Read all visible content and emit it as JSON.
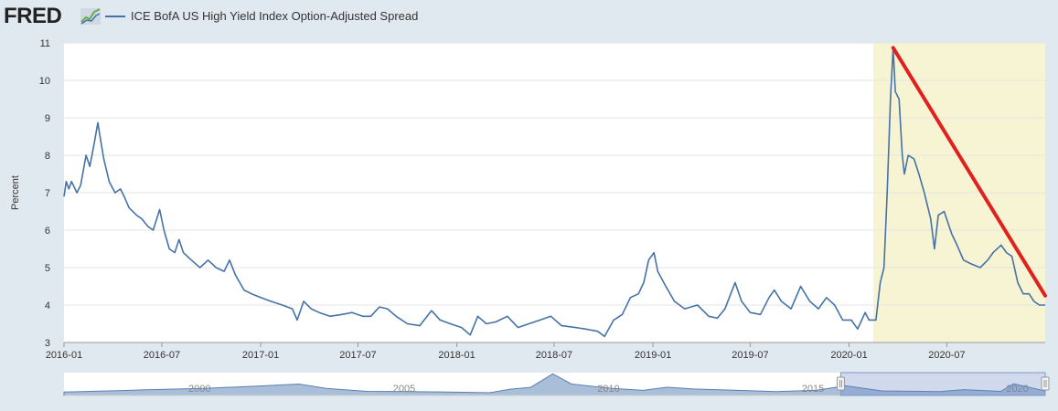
{
  "header": {
    "logo": "FRED",
    "legend_label": "ICE BofA US High Yield Index Option-Adjusted Spread"
  },
  "colors": {
    "series": "#4572a7",
    "recession_band": "#f7f4d3",
    "annotation": "#e0211d",
    "background": "#e1e9f0",
    "navigator_fill": "#a9bfd9"
  },
  "chart_data": {
    "type": "line",
    "title": "",
    "ylabel": "Percent",
    "xlabel": "",
    "ylim": [
      3,
      11
    ],
    "yticks": [
      "3",
      "4",
      "5",
      "6",
      "7",
      "8",
      "9",
      "10",
      "11"
    ],
    "xlim": [
      "2016-01-01",
      "2020-12-31"
    ],
    "xticks": [
      "2016-01",
      "2016-07",
      "2017-01",
      "2017-07",
      "2018-01",
      "2018-07",
      "2019-01",
      "2019-07",
      "2020-01",
      "2020-07"
    ],
    "grid": "horizontal",
    "shaded_region": {
      "start": "2020-02-15",
      "end": "2020-12-31"
    },
    "annotation_line": {
      "from": [
        "2020-03-23",
        10.87
      ],
      "to": [
        "2020-12-31",
        4.25
      ]
    },
    "series": [
      {
        "name": "ICE BofA US High Yield Index Option-Adjusted Spread",
        "points": [
          [
            "2016-01-01",
            6.9
          ],
          [
            "2016-01-05",
            7.3
          ],
          [
            "2016-01-10",
            7.1
          ],
          [
            "2016-01-15",
            7.3
          ],
          [
            "2016-01-25",
            7.0
          ],
          [
            "2016-02-01",
            7.2
          ],
          [
            "2016-02-11",
            8.0
          ],
          [
            "2016-02-18",
            7.7
          ],
          [
            "2016-02-26",
            8.3
          ],
          [
            "2016-03-04",
            8.87
          ],
          [
            "2016-03-08",
            8.5
          ],
          [
            "2016-03-15",
            7.9
          ],
          [
            "2016-03-25",
            7.3
          ],
          [
            "2016-04-05",
            7.0
          ],
          [
            "2016-04-15",
            7.1
          ],
          [
            "2016-04-22",
            6.9
          ],
          [
            "2016-05-01",
            6.6
          ],
          [
            "2016-05-15",
            6.4
          ],
          [
            "2016-05-25",
            6.3
          ],
          [
            "2016-06-05",
            6.1
          ],
          [
            "2016-06-15",
            6.0
          ],
          [
            "2016-06-27",
            6.55
          ],
          [
            "2016-07-05",
            6.0
          ],
          [
            "2016-07-15",
            5.5
          ],
          [
            "2016-07-25",
            5.4
          ],
          [
            "2016-08-02",
            5.75
          ],
          [
            "2016-08-10",
            5.4
          ],
          [
            "2016-08-25",
            5.2
          ],
          [
            "2016-09-10",
            5.0
          ],
          [
            "2016-09-25",
            5.2
          ],
          [
            "2016-10-10",
            5.0
          ],
          [
            "2016-10-25",
            4.9
          ],
          [
            "2016-11-04",
            5.2
          ],
          [
            "2016-11-15",
            4.8
          ],
          [
            "2016-12-01",
            4.4
          ],
          [
            "2016-12-15",
            4.3
          ],
          [
            "2017-01-01",
            4.2
          ],
          [
            "2017-01-20",
            4.1
          ],
          [
            "2017-02-10",
            4.0
          ],
          [
            "2017-03-01",
            3.9
          ],
          [
            "2017-03-10",
            3.6
          ],
          [
            "2017-03-22",
            4.1
          ],
          [
            "2017-04-05",
            3.9
          ],
          [
            "2017-04-20",
            3.8
          ],
          [
            "2017-05-10",
            3.7
          ],
          [
            "2017-06-01",
            3.75
          ],
          [
            "2017-06-20",
            3.8
          ],
          [
            "2017-07-10",
            3.7
          ],
          [
            "2017-07-25",
            3.7
          ],
          [
            "2017-08-10",
            3.95
          ],
          [
            "2017-08-25",
            3.9
          ],
          [
            "2017-09-10",
            3.7
          ],
          [
            "2017-10-01",
            3.5
          ],
          [
            "2017-10-24",
            3.45
          ],
          [
            "2017-11-15",
            3.85
          ],
          [
            "2017-12-01",
            3.6
          ],
          [
            "2017-12-20",
            3.5
          ],
          [
            "2018-01-10",
            3.4
          ],
          [
            "2018-01-26",
            3.2
          ],
          [
            "2018-02-09",
            3.7
          ],
          [
            "2018-02-25",
            3.5
          ],
          [
            "2018-03-15",
            3.55
          ],
          [
            "2018-04-05",
            3.7
          ],
          [
            "2018-04-25",
            3.4
          ],
          [
            "2018-05-15",
            3.5
          ],
          [
            "2018-06-05",
            3.6
          ],
          [
            "2018-06-25",
            3.7
          ],
          [
            "2018-07-15",
            3.45
          ],
          [
            "2018-08-10",
            3.4
          ],
          [
            "2018-09-01",
            3.35
          ],
          [
            "2018-09-20",
            3.3
          ],
          [
            "2018-10-03",
            3.16
          ],
          [
            "2018-10-20",
            3.6
          ],
          [
            "2018-11-05",
            3.75
          ],
          [
            "2018-11-20",
            4.2
          ],
          [
            "2018-12-05",
            4.3
          ],
          [
            "2018-12-15",
            4.6
          ],
          [
            "2018-12-24",
            5.2
          ],
          [
            "2019-01-03",
            5.4
          ],
          [
            "2019-01-10",
            4.9
          ],
          [
            "2019-01-25",
            4.5
          ],
          [
            "2019-02-10",
            4.1
          ],
          [
            "2019-03-01",
            3.9
          ],
          [
            "2019-03-25",
            4.0
          ],
          [
            "2019-04-15",
            3.7
          ],
          [
            "2019-05-01",
            3.65
          ],
          [
            "2019-05-15",
            3.9
          ],
          [
            "2019-06-03",
            4.6
          ],
          [
            "2019-06-15",
            4.1
          ],
          [
            "2019-07-01",
            3.8
          ],
          [
            "2019-07-20",
            3.75
          ],
          [
            "2019-08-05",
            4.2
          ],
          [
            "2019-08-15",
            4.4
          ],
          [
            "2019-08-28",
            4.1
          ],
          [
            "2019-09-15",
            3.9
          ],
          [
            "2019-10-03",
            4.5
          ],
          [
            "2019-10-20",
            4.1
          ],
          [
            "2019-11-05",
            3.9
          ],
          [
            "2019-11-20",
            4.2
          ],
          [
            "2019-12-05",
            4.0
          ],
          [
            "2019-12-20",
            3.6
          ],
          [
            "2020-01-05",
            3.6
          ],
          [
            "2020-01-17",
            3.36
          ],
          [
            "2020-01-31",
            3.8
          ],
          [
            "2020-02-07",
            3.6
          ],
          [
            "2020-02-20",
            3.6
          ],
          [
            "2020-02-28",
            4.6
          ],
          [
            "2020-03-06",
            5.0
          ],
          [
            "2020-03-12",
            7.0
          ],
          [
            "2020-03-18",
            9.5
          ],
          [
            "2020-03-23",
            10.87
          ],
          [
            "2020-03-27",
            9.7
          ],
          [
            "2020-04-03",
            9.5
          ],
          [
            "2020-04-09",
            8.0
          ],
          [
            "2020-04-13",
            7.5
          ],
          [
            "2020-04-20",
            8.0
          ],
          [
            "2020-05-01",
            7.9
          ],
          [
            "2020-05-10",
            7.5
          ],
          [
            "2020-05-20",
            7.0
          ],
          [
            "2020-06-01",
            6.3
          ],
          [
            "2020-06-08",
            5.5
          ],
          [
            "2020-06-15",
            6.4
          ],
          [
            "2020-06-26",
            6.5
          ],
          [
            "2020-07-10",
            5.9
          ],
          [
            "2020-07-20",
            5.6
          ],
          [
            "2020-08-01",
            5.2
          ],
          [
            "2020-08-15",
            5.1
          ],
          [
            "2020-09-01",
            5.0
          ],
          [
            "2020-09-15",
            5.2
          ],
          [
            "2020-09-25",
            5.4
          ],
          [
            "2020-10-10",
            5.6
          ],
          [
            "2020-10-20",
            5.4
          ],
          [
            "2020-10-30",
            5.3
          ],
          [
            "2020-11-10",
            4.6
          ],
          [
            "2020-11-20",
            4.3
          ],
          [
            "2020-12-01",
            4.3
          ],
          [
            "2020-12-10",
            4.1
          ],
          [
            "2020-12-20",
            4.0
          ],
          [
            "2020-12-31",
            4.0
          ]
        ]
      }
    ]
  },
  "navigator": {
    "labels": [
      "2000",
      "2005",
      "2010",
      "2015",
      "2020"
    ],
    "window": {
      "start": "2016-01-01",
      "end": "2020-12-31"
    },
    "profile": [
      [
        "1997-01-01",
        3.2
      ],
      [
        "1998-06-01",
        4.5
      ],
      [
        "1999-01-01",
        5.2
      ],
      [
        "2000-06-01",
        6.5
      ],
      [
        "2001-09-01",
        8.5
      ],
      [
        "2002-10-01",
        10.5
      ],
      [
        "2003-06-01",
        6.5
      ],
      [
        "2004-06-01",
        3.8
      ],
      [
        "2005-06-01",
        3.6
      ],
      [
        "2006-06-01",
        3.2
      ],
      [
        "2007-06-01",
        2.5
      ],
      [
        "2007-12-01",
        5.8
      ],
      [
        "2008-06-01",
        7.5
      ],
      [
        "2008-12-15",
        19.9
      ],
      [
        "2009-06-01",
        10.5
      ],
      [
        "2010-06-01",
        6.5
      ],
      [
        "2011-03-01",
        4.7
      ],
      [
        "2011-10-01",
        7.6
      ],
      [
        "2012-06-01",
        6.0
      ],
      [
        "2013-06-01",
        4.9
      ],
      [
        "2014-06-01",
        3.5
      ],
      [
        "2015-06-01",
        4.9
      ],
      [
        "2016-02-11",
        8.87
      ],
      [
        "2017-01-01",
        4.2
      ],
      [
        "2018-06-01",
        3.5
      ],
      [
        "2019-01-03",
        5.4
      ],
      [
        "2019-12-01",
        3.8
      ],
      [
        "2020-03-23",
        10.87
      ],
      [
        "2020-12-31",
        4.0
      ]
    ]
  }
}
